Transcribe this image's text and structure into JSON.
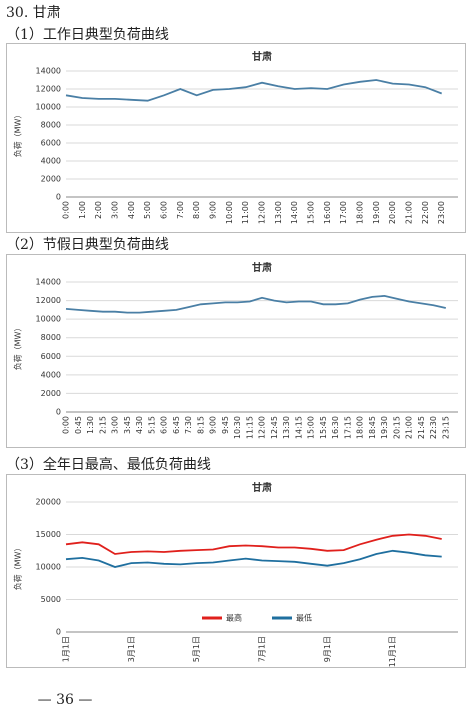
{
  "heading": "30. 甘肃",
  "sections": [
    "（1）工作日典型负荷曲线",
    "（2）节假日典型负荷曲线",
    "（3）全年日最高、最低负荷曲线"
  ],
  "page_number": "— 36 —",
  "chart_data": [
    {
      "type": "line",
      "title": "甘肃",
      "y_label": "负荷（MW）",
      "color": "#4a7fa5",
      "categories": [
        "0:00",
        "1:00",
        "2:00",
        "3:00",
        "4:00",
        "5:00",
        "6:00",
        "7:00",
        "8:00",
        "9:00",
        "10:00",
        "11:00",
        "12:00",
        "13:00",
        "14:00",
        "15:00",
        "16:00",
        "17:00",
        "18:00",
        "19:00",
        "20:00",
        "21:00",
        "22:00",
        "23:00"
      ],
      "values": [
        11300,
        11000,
        10900,
        10900,
        10800,
        10700,
        11300,
        12000,
        11300,
        11900,
        12000,
        12200,
        12700,
        12300,
        12000,
        12100,
        12000,
        12500,
        12800,
        13000,
        12600,
        12500,
        12200,
        11500
      ],
      "ylim": [
        0,
        14000
      ],
      "yticks": [
        0,
        2000,
        4000,
        6000,
        8000,
        10000,
        12000,
        14000
      ],
      "grid": true
    },
    {
      "type": "line",
      "title": "甘肃",
      "y_label": "负荷（MW）",
      "color": "#4a7fa5",
      "categories": [
        "0:00",
        "0:45",
        "1:30",
        "2:15",
        "3:00",
        "3:45",
        "4:30",
        "5:15",
        "6:00",
        "6:45",
        "7:30",
        "8:15",
        "9:00",
        "9:45",
        "10:30",
        "11:15",
        "12:00",
        "12:45",
        "13:30",
        "14:15",
        "15:00",
        "15:45",
        "16:30",
        "17:15",
        "18:00",
        "18:45",
        "19:30",
        "20:15",
        "21:00",
        "21:45",
        "22:30",
        "23:15"
      ],
      "values": [
        11100,
        11000,
        10900,
        10800,
        10800,
        10700,
        10700,
        10800,
        10900,
        11000,
        11300,
        11600,
        11700,
        11800,
        11800,
        11900,
        12300,
        12000,
        11800,
        11900,
        11900,
        11600,
        11600,
        11700,
        12100,
        12400,
        12500,
        12200,
        11900,
        11700,
        11500,
        11200
      ],
      "ylim": [
        0,
        14000
      ],
      "yticks": [
        0,
        2000,
        4000,
        6000,
        8000,
        10000,
        12000,
        14000
      ],
      "grid": true
    },
    {
      "type": "line",
      "title": "甘肃",
      "y_label": "负荷（MW）",
      "legend": "lower center",
      "categories": [
        "1月1日",
        null,
        null,
        null,
        "3月1日",
        null,
        null,
        null,
        "5月1日",
        null,
        null,
        null,
        "7月1日",
        null,
        null,
        null,
        "9月1日",
        null,
        null,
        null,
        "11月1日",
        null,
        null,
        null
      ],
      "series": [
        {
          "name": "最高",
          "color": "#e0201c",
          "values": [
            13500,
            13800,
            13500,
            12000,
            12300,
            12400,
            12300,
            12500,
            12600,
            12700,
            13200,
            13300,
            13200,
            13000,
            13000,
            12800,
            12500,
            12600,
            13500,
            14200,
            14800,
            15000,
            14800,
            14300
          ]
        },
        {
          "name": "最低",
          "color": "#1f6f9f",
          "values": [
            11200,
            11400,
            11000,
            10000,
            10600,
            10700,
            10500,
            10400,
            10600,
            10700,
            11000,
            11300,
            11000,
            10900,
            10800,
            10500,
            10200,
            10600,
            11200,
            12000,
            12500,
            12200,
            11800,
            11600
          ]
        }
      ],
      "ylim": [
        0,
        20000
      ],
      "yticks": [
        0,
        5000,
        10000,
        15000,
        20000
      ],
      "grid": true
    }
  ]
}
